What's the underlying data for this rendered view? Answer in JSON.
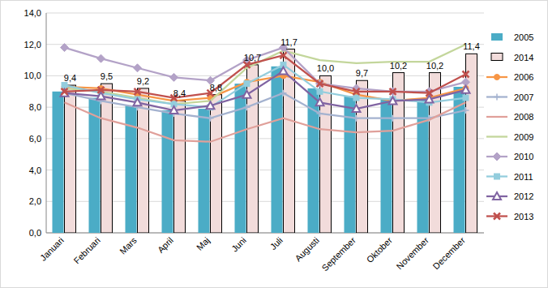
{
  "chart_data": {
    "type": "bar",
    "categories": [
      "Januari",
      "Februari",
      "Mars",
      "April",
      "Maj",
      "Juni",
      "Juli",
      "Augusti",
      "September",
      "Oktober",
      "November",
      "December"
    ],
    "ylim": [
      0,
      14
    ],
    "yticks": [
      {
        "value": 0,
        "label": "0,0"
      },
      {
        "value": 2,
        "label": "2,0"
      },
      {
        "value": 4,
        "label": "4,0"
      },
      {
        "value": 6,
        "label": "6,0"
      },
      {
        "value": 8,
        "label": "8,0"
      },
      {
        "value": 10,
        "label": "10,0"
      },
      {
        "value": 12,
        "label": "12,0"
      },
      {
        "value": 14,
        "label": "14,0"
      }
    ],
    "grid": true,
    "legend": "right",
    "data_labels": true,
    "series": [
      {
        "name": "2005",
        "type": "bar",
        "color": "#4bacc6",
        "values": [
          9.0,
          8.6,
          8.1,
          7.8,
          7.9,
          9.5,
          10.6,
          9.2,
          8.7,
          8.5,
          8.5,
          9.3
        ]
      },
      {
        "name": "2014",
        "type": "bar",
        "color": "#f2dcdb",
        "values": [
          9.4,
          9.5,
          9.2,
          8.4,
          8.8,
          10.7,
          11.7,
          10.0,
          9.7,
          10.2,
          10.2,
          11.4
        ],
        "value_labels": [
          "9,4",
          "9,5",
          "9,2",
          "8,4",
          "8,8",
          "10,7",
          "11,7",
          "10,0",
          "9,7",
          "10,2",
          "10,2",
          "11,4"
        ]
      },
      {
        "name": "2006",
        "type": "line",
        "color": "#f79646",
        "marker": "circle",
        "values": [
          9.3,
          9.2,
          8.8,
          8.4,
          8.6,
          9.6,
          10.0,
          9.6,
          8.8,
          8.4,
          8.6,
          9.2
        ]
      },
      {
        "name": "2007",
        "type": "line",
        "color": "#a4b2cf",
        "marker": "plus",
        "values": [
          8.9,
          8.4,
          8.0,
          7.6,
          7.3,
          8.0,
          8.9,
          7.6,
          7.3,
          7.3,
          7.3,
          7.8
        ]
      },
      {
        "name": "2008",
        "type": "line",
        "color": "#e0a09a",
        "marker": "none",
        "values": [
          8.3,
          7.3,
          6.7,
          5.9,
          5.8,
          6.6,
          7.3,
          6.6,
          6.4,
          6.5,
          7.2,
          8.3
        ]
      },
      {
        "name": "2009",
        "type": "line",
        "color": "#c3d69b",
        "marker": "none",
        "values": [
          9.2,
          9.0,
          8.6,
          8.2,
          8.4,
          10.5,
          11.6,
          11.0,
          10.8,
          10.9,
          10.9,
          12.0
        ]
      },
      {
        "name": "2010",
        "type": "line",
        "color": "#b3a2c7",
        "marker": "diamond",
        "values": [
          11.8,
          11.1,
          10.5,
          9.9,
          9.7,
          11.0,
          11.8,
          9.5,
          9.2,
          9.0,
          9.0,
          9.6
        ]
      },
      {
        "name": "2011",
        "type": "line",
        "color": "#93cddd",
        "marker": "square",
        "values": [
          9.4,
          8.9,
          8.5,
          8.2,
          8.0,
          9.5,
          10.7,
          9.0,
          8.6,
          8.5,
          8.3,
          8.6
        ]
      },
      {
        "name": "2012",
        "type": "line",
        "color": "#8064a2",
        "marker": "triangle",
        "values": [
          8.9,
          8.7,
          8.3,
          7.8,
          8.1,
          8.8,
          10.3,
          8.3,
          7.9,
          8.4,
          8.5,
          9.1
        ]
      },
      {
        "name": "2013",
        "type": "line",
        "color": "#c0504d",
        "marker": "x",
        "values": [
          9.0,
          9.1,
          9.0,
          8.6,
          8.9,
          10.7,
          11.3,
          9.5,
          9.0,
          9.0,
          8.9,
          10.1
        ]
      }
    ]
  }
}
